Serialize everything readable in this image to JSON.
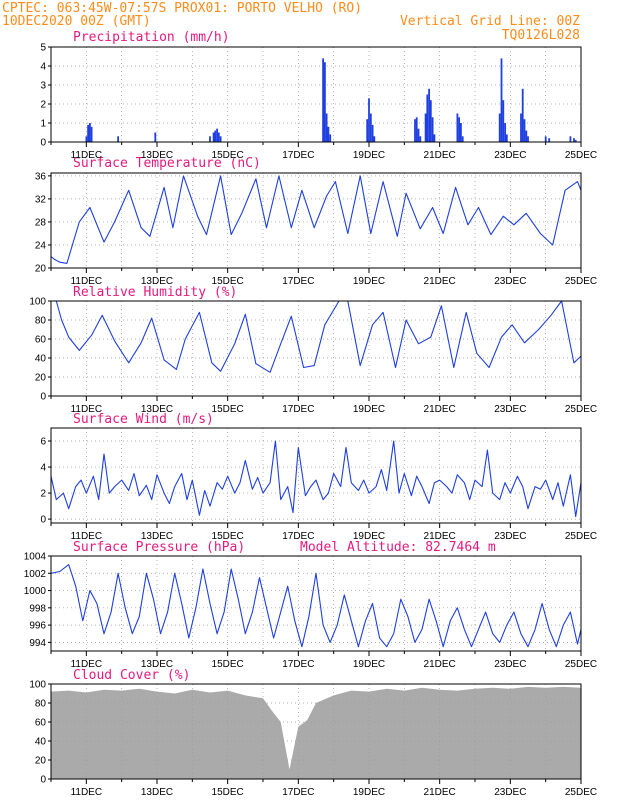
{
  "header": {
    "line1_left": "CPTEC:  063:45W-07:57S  PROX01: PORTO VELHO (RO)",
    "line2_left": "10DEC2020 00Z (GMT)",
    "line2_right": "Vertical Grid Line: 00Z",
    "line3_right": "TQ0126L028"
  },
  "colors": {
    "header": "#ff8c1a",
    "panel_title": "#e6197f",
    "series": "#1f3fe0",
    "cloud": "#aaaaaa",
    "grid": "#999999"
  },
  "x_axis": {
    "start_day": 10,
    "end_day": 25,
    "tick_labels": [
      "11DEC",
      "13DEC",
      "15DEC",
      "17DEC",
      "19DEC",
      "21DEC",
      "23DEC",
      "25DEC"
    ]
  },
  "chart_data": [
    {
      "type": "bar",
      "title": "Precipitation (mm/h)",
      "ylim": [
        0,
        5
      ],
      "yticks": [
        0,
        1,
        2,
        3,
        4,
        5
      ],
      "x_unit": "days since 10DEC2020 00Z",
      "x": [
        1.0,
        1.05,
        1.1,
        1.15,
        1.9,
        2.95,
        4.5,
        4.6,
        4.65,
        4.7,
        4.75,
        4.8,
        7.7,
        7.75,
        7.8,
        7.85,
        7.9,
        8.95,
        9.0,
        9.05,
        9.1,
        9.15,
        10.3,
        10.35,
        10.4,
        10.45,
        10.6,
        10.65,
        10.7,
        10.75,
        10.8,
        10.85,
        11.5,
        11.55,
        11.6,
        11.65,
        12.7,
        12.75,
        12.8,
        12.85,
        12.9,
        13.3,
        13.35,
        13.4,
        13.45,
        13.5,
        14.0,
        14.1,
        14.7,
        14.8,
        14.85
      ],
      "values": [
        0.3,
        0.9,
        1.0,
        0.8,
        0.3,
        0.5,
        0.3,
        0.5,
        0.6,
        0.7,
        0.5,
        0.3,
        4.4,
        4.2,
        1.5,
        0.8,
        0.4,
        1.2,
        2.3,
        1.5,
        0.9,
        0.3,
        1.2,
        1.3,
        0.7,
        0.3,
        1.5,
        2.5,
        2.8,
        2.2,
        1.3,
        0.4,
        1.5,
        1.3,
        1.0,
        0.3,
        1.5,
        4.4,
        2.2,
        1.0,
        0.4,
        1.5,
        2.8,
        1.2,
        0.6,
        0.3,
        0.3,
        0.2,
        0.3,
        0.2,
        0.1
      ]
    },
    {
      "type": "line",
      "title": "Surface Temperature (nC)",
      "ylim": [
        20,
        36.5
      ],
      "yticks": [
        20,
        24,
        28,
        32,
        36
      ],
      "x_unit": "days since 10DEC2020 00Z",
      "x": [
        0.0,
        0.1,
        0.25,
        0.45,
        0.8,
        1.1,
        1.5,
        1.8,
        2.2,
        2.55,
        2.8,
        3.2,
        3.45,
        3.75,
        4.15,
        4.4,
        4.8,
        5.1,
        5.4,
        5.8,
        6.1,
        6.45,
        6.8,
        7.1,
        7.45,
        7.8,
        8.05,
        8.4,
        8.75,
        9.05,
        9.4,
        9.8,
        10.05,
        10.45,
        10.8,
        11.1,
        11.45,
        11.8,
        12.1,
        12.45,
        12.8,
        13.1,
        13.45,
        13.85,
        14.2,
        14.55,
        14.9,
        15.0
      ],
      "values": [
        22.0,
        21.5,
        21.0,
        20.8,
        28.0,
        30.5,
        24.5,
        28.0,
        33.5,
        27.0,
        25.5,
        34.0,
        27.0,
        36.0,
        29.0,
        25.8,
        36.0,
        25.8,
        29.5,
        35.5,
        27.0,
        36.0,
        27.0,
        33.5,
        27.0,
        32.5,
        35.0,
        26.0,
        36.0,
        26.0,
        35.0,
        25.5,
        33.0,
        26.8,
        30.5,
        26.0,
        34.0,
        27.5,
        30.5,
        25.8,
        29.0,
        27.5,
        29.5,
        26.0,
        24.0,
        33.5,
        35.0,
        33.5
      ]
    },
    {
      "type": "line",
      "title": "Relative Humidity (%)",
      "ylim": [
        0,
        100
      ],
      "yticks": [
        0,
        20,
        40,
        60,
        80,
        100
      ],
      "x_unit": "days since 10DEC2020 00Z",
      "x": [
        0.0,
        0.15,
        0.3,
        0.5,
        0.8,
        1.15,
        1.45,
        1.8,
        2.2,
        2.55,
        2.85,
        3.2,
        3.55,
        3.8,
        4.2,
        4.55,
        4.8,
        5.2,
        5.5,
        5.8,
        6.2,
        6.5,
        6.8,
        7.15,
        7.45,
        7.75,
        8.15,
        8.4,
        8.75,
        9.1,
        9.4,
        9.75,
        10.05,
        10.4,
        10.75,
        11.05,
        11.4,
        11.75,
        12.05,
        12.4,
        12.75,
        13.05,
        13.4,
        13.8,
        14.15,
        14.45,
        14.8,
        15.0
      ],
      "values": [
        100,
        100,
        80,
        62,
        48,
        64,
        85,
        58,
        35,
        56,
        82,
        38,
        28,
        60,
        88,
        35,
        26,
        55,
        86,
        34,
        25,
        55,
        84,
        30,
        32,
        75,
        100,
        100,
        32,
        75,
        88,
        30,
        80,
        55,
        62,
        95,
        30,
        88,
        45,
        30,
        62,
        75,
        56,
        70,
        85,
        100,
        35,
        42
      ]
    },
    {
      "type": "line",
      "title": "Surface Wind (m/s)",
      "ylim": [
        -0.3,
        7.0
      ],
      "yticks": [
        0,
        2,
        4,
        6
      ],
      "x_unit": "days since 10DEC2020 00Z",
      "x": [
        0.0,
        0.15,
        0.35,
        0.5,
        0.7,
        0.85,
        1.0,
        1.2,
        1.35,
        1.5,
        1.65,
        1.8,
        2.0,
        2.2,
        2.35,
        2.5,
        2.7,
        2.85,
        3.0,
        3.2,
        3.35,
        3.5,
        3.7,
        3.85,
        4.0,
        4.2,
        4.35,
        4.5,
        4.7,
        4.85,
        5.0,
        5.2,
        5.35,
        5.5,
        5.7,
        5.85,
        6.0,
        6.2,
        6.35,
        6.5,
        6.7,
        6.85,
        7.0,
        7.2,
        7.35,
        7.5,
        7.7,
        7.85,
        8.0,
        8.2,
        8.35,
        8.5,
        8.7,
        8.85,
        9.0,
        9.2,
        9.35,
        9.5,
        9.7,
        9.85,
        10.0,
        10.2,
        10.35,
        10.5,
        10.7,
        10.85,
        11.0,
        11.2,
        11.35,
        11.5,
        11.7,
        11.85,
        12.0,
        12.2,
        12.35,
        12.5,
        12.7,
        12.85,
        13.0,
        13.2,
        13.35,
        13.5,
        13.7,
        13.85,
        14.0,
        14.2,
        14.35,
        14.5,
        14.7,
        14.85,
        15.0
      ],
      "values": [
        3.3,
        1.5,
        2.0,
        0.8,
        2.5,
        3.0,
        2.0,
        3.3,
        1.5,
        5.0,
        2.0,
        2.5,
        3.0,
        2.2,
        3.5,
        1.8,
        2.6,
        1.5,
        3.4,
        2.0,
        1.2,
        2.5,
        3.5,
        1.5,
        3.0,
        0.3,
        2.2,
        1.0,
        2.8,
        2.3,
        3.3,
        2.0,
        2.8,
        4.5,
        2.3,
        3.2,
        2.0,
        2.8,
        6.0,
        1.5,
        2.5,
        0.5,
        5.5,
        1.8,
        2.5,
        3.0,
        1.5,
        2.0,
        3.5,
        2.5,
        5.5,
        2.8,
        2.2,
        3.0,
        2.0,
        2.5,
        3.8,
        2.2,
        6.0,
        2.0,
        3.5,
        1.8,
        3.3,
        2.5,
        1.2,
        2.8,
        3.0,
        2.5,
        2.0,
        3.4,
        2.8,
        1.5,
        3.0,
        2.5,
        5.3,
        2.0,
        1.5,
        2.8,
        2.0,
        3.3,
        2.5,
        0.8,
        2.5,
        2.3,
        3.0,
        1.5,
        2.8,
        1.0,
        3.4,
        0.2,
        2.8
      ]
    },
    {
      "type": "line",
      "title": "Surface Pressure (hPa)",
      "annotation": "Model Altitude: 82.7464 m",
      "ylim": [
        993.0,
        1004.0
      ],
      "yticks": [
        994,
        996,
        998,
        1000,
        1002,
        1004
      ],
      "x_unit": "days since 10DEC2020 00Z",
      "x": [
        0.0,
        0.25,
        0.5,
        0.7,
        0.9,
        1.1,
        1.3,
        1.5,
        1.7,
        1.9,
        2.1,
        2.3,
        2.5,
        2.7,
        2.9,
        3.1,
        3.3,
        3.5,
        3.7,
        3.9,
        4.1,
        4.3,
        4.5,
        4.7,
        4.9,
        5.1,
        5.3,
        5.5,
        5.7,
        5.9,
        6.1,
        6.3,
        6.5,
        6.7,
        6.9,
        7.1,
        7.3,
        7.5,
        7.7,
        7.9,
        8.1,
        8.3,
        8.5,
        8.7,
        8.9,
        9.1,
        9.3,
        9.5,
        9.7,
        9.9,
        10.1,
        10.3,
        10.5,
        10.7,
        10.9,
        11.1,
        11.3,
        11.5,
        11.7,
        11.9,
        12.1,
        12.3,
        12.5,
        12.7,
        12.9,
        13.1,
        13.3,
        13.5,
        13.7,
        13.9,
        14.1,
        14.3,
        14.5,
        14.7,
        14.9,
        15.0
      ],
      "values": [
        1002.0,
        1002.2,
        1003.0,
        1000.5,
        996.5,
        1000.0,
        998.5,
        995.0,
        997.5,
        1002.0,
        998.0,
        995.0,
        997.0,
        1002.0,
        999.0,
        995.0,
        997.5,
        1002.0,
        998.5,
        994.5,
        998.0,
        1002.5,
        998.5,
        995.0,
        997.5,
        1002.5,
        999.0,
        995.0,
        997.5,
        1001.5,
        998.0,
        994.5,
        997.5,
        1000.5,
        996.5,
        993.5,
        997.0,
        1002.0,
        996.0,
        994.0,
        996.0,
        999.5,
        996.5,
        993.5,
        996.5,
        998.5,
        994.5,
        993.5,
        995.0,
        999.0,
        997.0,
        994.0,
        995.5,
        999.0,
        996.5,
        993.5,
        996.5,
        998.0,
        995.5,
        993.5,
        995.5,
        997.5,
        995.0,
        994.0,
        996.0,
        997.5,
        995.0,
        993.5,
        995.5,
        998.5,
        995.5,
        993.5,
        996.0,
        997.5,
        993.8,
        995.5
      ]
    },
    {
      "type": "area",
      "title": "Cloud Cover (%)",
      "ylim": [
        0,
        100
      ],
      "yticks": [
        0,
        20,
        40,
        60,
        80,
        100
      ],
      "x_unit": "days since 10DEC2020 00Z",
      "x": [
        0.0,
        0.5,
        1.0,
        1.5,
        2.0,
        2.5,
        3.0,
        3.5,
        4.0,
        4.5,
        5.0,
        5.5,
        6.0,
        6.25,
        6.5,
        6.75,
        7.0,
        7.25,
        7.5,
        8.0,
        8.5,
        9.0,
        9.5,
        10.0,
        10.5,
        11.0,
        11.5,
        12.0,
        12.5,
        13.0,
        13.5,
        14.0,
        14.5,
        15.0
      ],
      "values": [
        92,
        93,
        91,
        94,
        93,
        95,
        92,
        90,
        94,
        91,
        93,
        88,
        85,
        72,
        60,
        10,
        55,
        62,
        80,
        88,
        93,
        92,
        95,
        93,
        96,
        94,
        93,
        95,
        96,
        95,
        97,
        96,
        97,
        96
      ]
    }
  ]
}
